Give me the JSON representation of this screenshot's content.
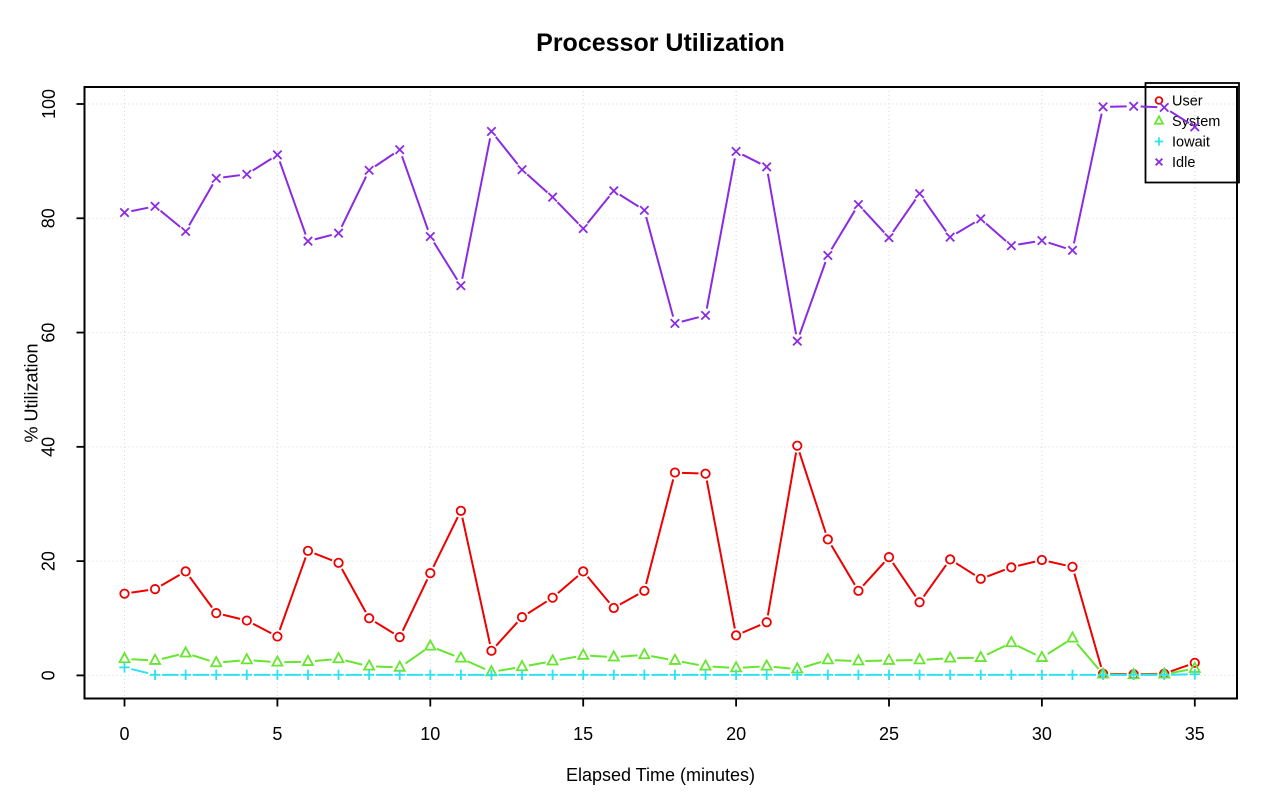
{
  "title": "Processor Utilization",
  "chart_data": {
    "type": "line",
    "title": "Processor Utilization",
    "xlabel": "Elapsed Time (minutes)",
    "ylabel": "% Utilization",
    "xlim": [
      0,
      35
    ],
    "ylim": [
      0,
      100
    ],
    "x_ticks": [
      0,
      5,
      10,
      15,
      20,
      25,
      30,
      35
    ],
    "y_ticks": [
      0,
      20,
      40,
      60,
      80,
      100
    ],
    "grid": true,
    "grid_color": "#d6d6d6",
    "legend_position": "topright",
    "x": [
      0,
      1,
      2,
      3,
      4,
      5,
      6,
      7,
      8,
      9,
      10,
      11,
      12,
      13,
      14,
      15,
      16,
      17,
      18,
      19,
      20,
      21,
      22,
      23,
      24,
      25,
      26,
      27,
      28,
      29,
      30,
      31,
      32,
      33,
      34,
      35
    ],
    "series": [
      {
        "name": "User",
        "marker": "circle",
        "color": "#ee0000",
        "values": [
          14.3,
          15.1,
          18.2,
          10.9,
          9.6,
          6.8,
          21.8,
          19.7,
          10.0,
          6.7,
          17.9,
          28.8,
          4.3,
          10.2,
          13.6,
          18.2,
          11.8,
          14.8,
          35.5,
          35.3,
          7.0,
          9.3,
          40.2,
          23.8,
          14.8,
          20.7,
          12.8,
          20.3,
          16.9,
          18.9,
          20.2,
          19.0,
          0.3,
          0.2,
          0.3,
          2.2
        ]
      },
      {
        "name": "System",
        "marker": "triangle",
        "color": "#66e62e",
        "values": [
          2.9,
          2.6,
          3.9,
          2.2,
          2.7,
          2.3,
          2.4,
          2.9,
          1.6,
          1.4,
          5.1,
          3.0,
          0.6,
          1.5,
          2.5,
          3.5,
          3.2,
          3.6,
          2.6,
          1.6,
          1.3,
          1.6,
          1.1,
          2.7,
          2.5,
          2.6,
          2.7,
          3.0,
          3.1,
          5.7,
          3.1,
          6.5,
          0.2,
          0.1,
          0.2,
          1.2
        ]
      },
      {
        "name": "Iowait",
        "marker": "plus",
        "color": "#2fe2ef",
        "values": [
          1.4,
          0.1,
          0.1,
          0.1,
          0.1,
          0.1,
          0.1,
          0.1,
          0.1,
          0.1,
          0.1,
          0.1,
          0.1,
          0.1,
          0.1,
          0.1,
          0.1,
          0.1,
          0.1,
          0.1,
          0.1,
          0.1,
          0.1,
          0.1,
          0.1,
          0.1,
          0.1,
          0.1,
          0.1,
          0.1,
          0.1,
          0.1,
          0.1,
          0.1,
          0.1,
          0.2
        ]
      },
      {
        "name": "Idle",
        "marker": "x",
        "color": "#8a2be2",
        "values": [
          81.0,
          82.1,
          77.7,
          87.0,
          87.7,
          91.1,
          76.0,
          77.4,
          88.4,
          92.0,
          76.8,
          68.2,
          95.2,
          88.5,
          83.7,
          78.2,
          84.8,
          81.4,
          61.6,
          63.0,
          91.7,
          89.0,
          58.5,
          73.5,
          82.4,
          76.6,
          84.3,
          76.7,
          79.9,
          75.2,
          76.1,
          74.4,
          99.5,
          99.6,
          99.4,
          96.0
        ]
      }
    ]
  }
}
